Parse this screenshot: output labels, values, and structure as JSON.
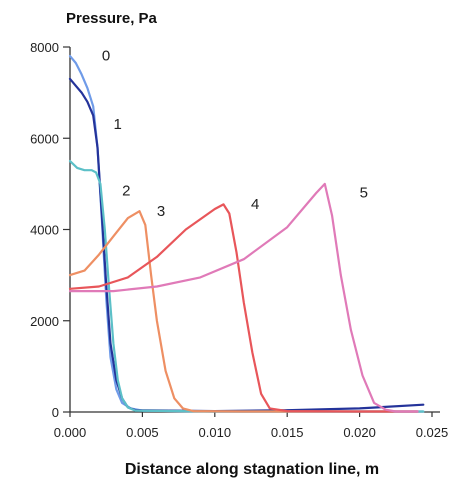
{
  "chart_data": {
    "type": "line",
    "ylabel": "Pressure, Pa",
    "xlabel": "Distance along stagnation line, m",
    "xlim": [
      0,
      0.025
    ],
    "ylim": [
      0,
      8000
    ],
    "xticks": [
      "0.000",
      "0.005",
      "0.010",
      "0.015",
      "0.020",
      "0.025"
    ],
    "yticks": [
      "0",
      "2000",
      "4000",
      "6000",
      "8000"
    ],
    "grid": false,
    "series": [
      {
        "name": "0",
        "color": "#6f9be8",
        "x": [
          0,
          0.0004,
          0.0008,
          0.0012,
          0.0016,
          0.0019,
          0.0022,
          0.0025,
          0.0028,
          0.0032,
          0.0036,
          0.0042,
          0.005,
          0.01,
          0.015,
          0.02,
          0.0244
        ],
        "y": [
          7800,
          7650,
          7400,
          7100,
          6700,
          5800,
          4200,
          2500,
          1200,
          500,
          200,
          80,
          30,
          10,
          10,
          10,
          10
        ]
      },
      {
        "name": "1",
        "color": "#24339a",
        "x": [
          0,
          0.0004,
          0.0008,
          0.0012,
          0.0016,
          0.0019,
          0.0022,
          0.0025,
          0.0028,
          0.0032,
          0.0036,
          0.004,
          0.0045,
          0.01,
          0.015,
          0.02,
          0.0244
        ],
        "y": [
          7300,
          7150,
          7000,
          6800,
          6500,
          5800,
          4300,
          2800,
          1500,
          700,
          300,
          100,
          40,
          20,
          40,
          80,
          160
        ]
      },
      {
        "name": "2",
        "color": "#5cc0c8",
        "x": [
          0,
          0.0005,
          0.001,
          0.0015,
          0.0018,
          0.0021,
          0.0024,
          0.0027,
          0.003,
          0.0033,
          0.0036,
          0.004,
          0.0045,
          0.01,
          0.015,
          0.02,
          0.0244
        ],
        "y": [
          5500,
          5350,
          5300,
          5300,
          5250,
          5000,
          4000,
          2700,
          1500,
          700,
          300,
          100,
          30,
          10,
          10,
          10,
          10
        ]
      },
      {
        "name": "3",
        "color": "#ee8f63",
        "x": [
          0,
          0.001,
          0.002,
          0.003,
          0.004,
          0.0048,
          0.0052,
          0.0056,
          0.006,
          0.0066,
          0.0072,
          0.0078,
          0.0085,
          0.012,
          0.018,
          0.024
        ],
        "y": [
          3000,
          3100,
          3450,
          3850,
          4250,
          4400,
          4100,
          3000,
          2000,
          900,
          300,
          80,
          20,
          10,
          10,
          10
        ]
      },
      {
        "name": "4",
        "color": "#e8565a",
        "x": [
          0,
          0.002,
          0.004,
          0.006,
          0.008,
          0.01,
          0.0106,
          0.011,
          0.0115,
          0.012,
          0.0126,
          0.0132,
          0.0138,
          0.015,
          0.02,
          0.024
        ],
        "y": [
          2700,
          2750,
          2950,
          3400,
          4000,
          4450,
          4550,
          4350,
          3500,
          2400,
          1300,
          400,
          80,
          20,
          10,
          10
        ]
      },
      {
        "name": "5",
        "color": "#e07ab8",
        "x": [
          0,
          0.003,
          0.006,
          0.009,
          0.012,
          0.015,
          0.017,
          0.0176,
          0.0181,
          0.0187,
          0.0194,
          0.0202,
          0.021,
          0.0218,
          0.0225,
          0.024
        ],
        "y": [
          2650,
          2650,
          2750,
          2950,
          3350,
          4050,
          4800,
          5000,
          4300,
          3000,
          1800,
          800,
          200,
          50,
          10,
          10
        ]
      }
    ]
  }
}
